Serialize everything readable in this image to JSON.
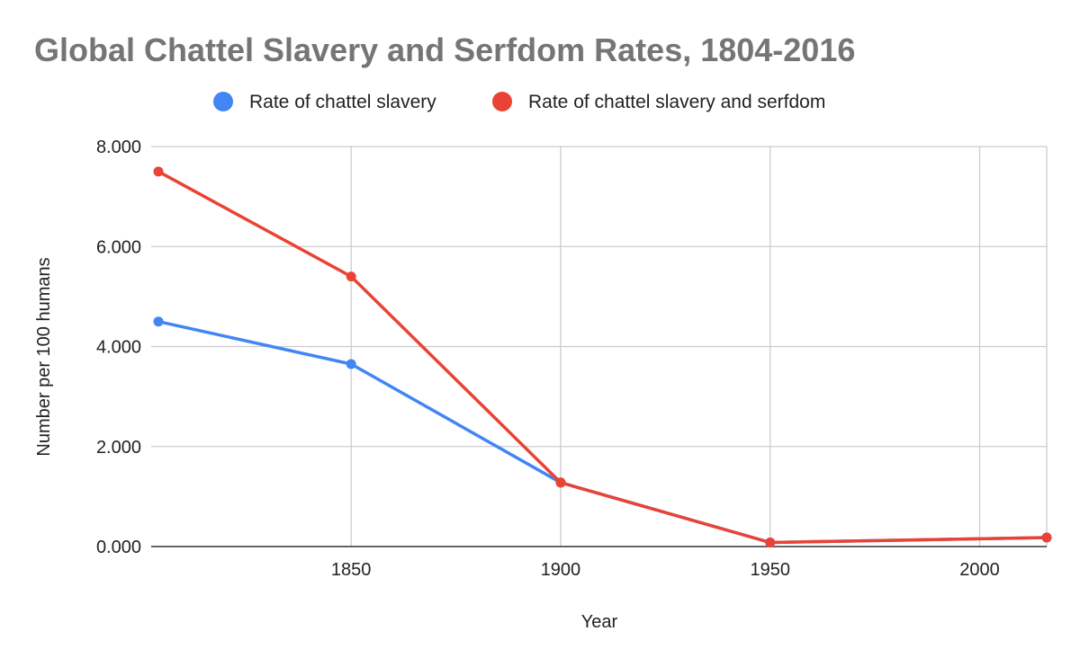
{
  "chart_data": {
    "type": "line",
    "title": "Global Chattel Slavery and Serfdom Rates, 1804-2016",
    "xlabel": "Year",
    "ylabel": "Number per 100 humans",
    "xlim": [
      1804,
      2016
    ],
    "ylim": [
      0,
      8
    ],
    "x_ticks": [
      1850,
      1900,
      1950,
      2000
    ],
    "y_ticks": [
      0,
      2,
      4,
      6,
      8
    ],
    "y_tick_labels": [
      "0.000",
      "2.000",
      "4.000",
      "6.000",
      "8.000"
    ],
    "grid": true,
    "legend_position": "top",
    "series": [
      {
        "name": "Rate of chattel slavery",
        "color": "#4285f4",
        "x": [
          1804,
          1850,
          1900,
          1950,
          2016
        ],
        "values": [
          4.5,
          3.65,
          1.28,
          0.08,
          0.18
        ]
      },
      {
        "name": "Rate of chattel slavery and serfdom",
        "color": "#ea4335",
        "x": [
          1804,
          1850,
          1900,
          1950,
          2016
        ],
        "values": [
          7.5,
          5.4,
          1.28,
          0.08,
          0.18
        ]
      }
    ]
  }
}
